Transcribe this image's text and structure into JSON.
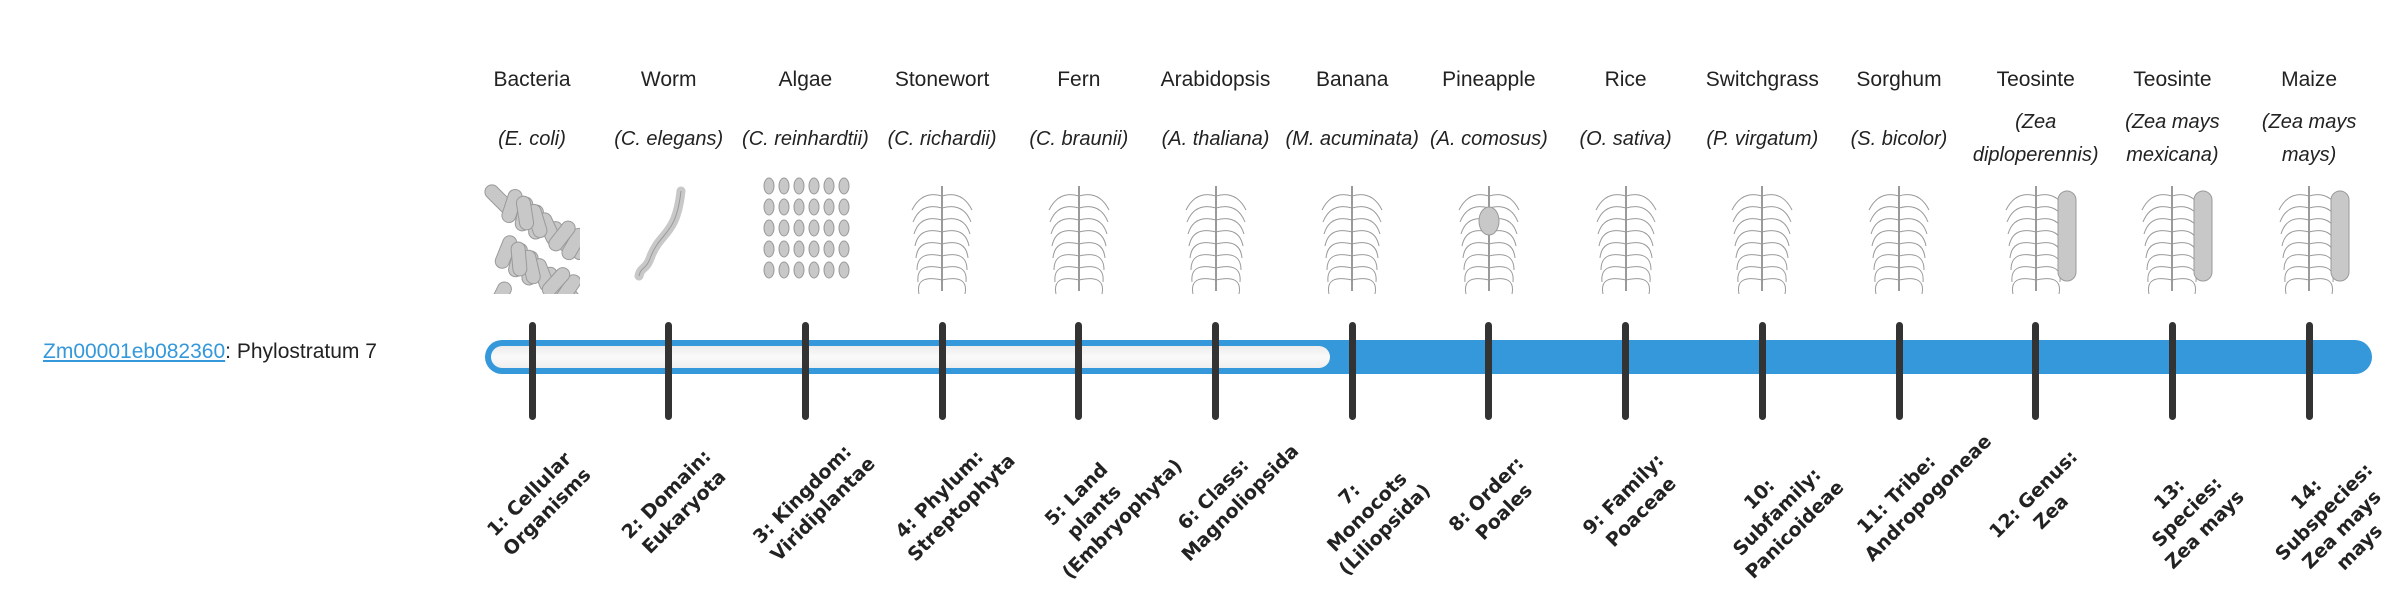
{
  "gene": {
    "id": "Zm00001eb082360",
    "separator": ":",
    "label": "Phylostratum 7"
  },
  "phylostratum": 7,
  "colors": {
    "accent": "#3498db",
    "tick": "#333333",
    "empty": "#f2f2f2"
  },
  "strata": [
    {
      "common": "Bacteria",
      "species": "(E. coli)",
      "image": "bacteria-illustration",
      "label": "1: Cellular Organisms"
    },
    {
      "common": "Worm",
      "species": "(C. elegans)",
      "image": "worm-illustration",
      "label": "2: Domain: Eukaryota"
    },
    {
      "common": "Algae",
      "species": "(C. reinhardtii)",
      "image": "algae-illustration",
      "label": "3: Kingdom: Viridiplantae"
    },
    {
      "common": "Stonewort",
      "species": "(C. richardii)",
      "image": "stonewort-illustration",
      "label": "4: Phylum: Streptophyta"
    },
    {
      "common": "Fern",
      "species": "(C. braunii)",
      "image": "fern-illustration",
      "label": "5: Land plants (Embryophyta)"
    },
    {
      "common": "Arabidopsis",
      "species": "(A. thaliana)",
      "image": "arabidopsis-illustration",
      "label": "6: Class: Magnoliopsida"
    },
    {
      "common": "Banana",
      "species": "(M. acuminata)",
      "image": "banana-illustration",
      "label": "7: Monocots (Liliopsida)"
    },
    {
      "common": "Pineapple",
      "species": "(A. comosus)",
      "image": "pineapple-illustration",
      "label": "8: Order: Poales"
    },
    {
      "common": "Rice",
      "species": "(O. sativa)",
      "image": "rice-illustration",
      "label": "9: Family: Poaceae"
    },
    {
      "common": "Switchgrass",
      "species": "(P. virgatum)",
      "image": "switchgrass-illustration",
      "label": "10: Subfamily: Panicoideae"
    },
    {
      "common": "Sorghum",
      "species": "(S. bicolor)",
      "image": "sorghum-illustration",
      "label": "11: Tribe: Andropogoneae"
    },
    {
      "common": "Teosinte",
      "species": "(Zea diploperennis)",
      "image": "teosinte-illustration",
      "label": "12: Genus: Zea"
    },
    {
      "common": "Teosinte",
      "species": "(Zea mays mexicana)",
      "image": "teosinte-mexicana-illustration",
      "label": "13: Species: Zea mays"
    },
    {
      "common": "Maize",
      "species": "(Zea mays mays)",
      "image": "maize-illustration",
      "label": "14: Subspecies: Zea mays mays"
    }
  ]
}
